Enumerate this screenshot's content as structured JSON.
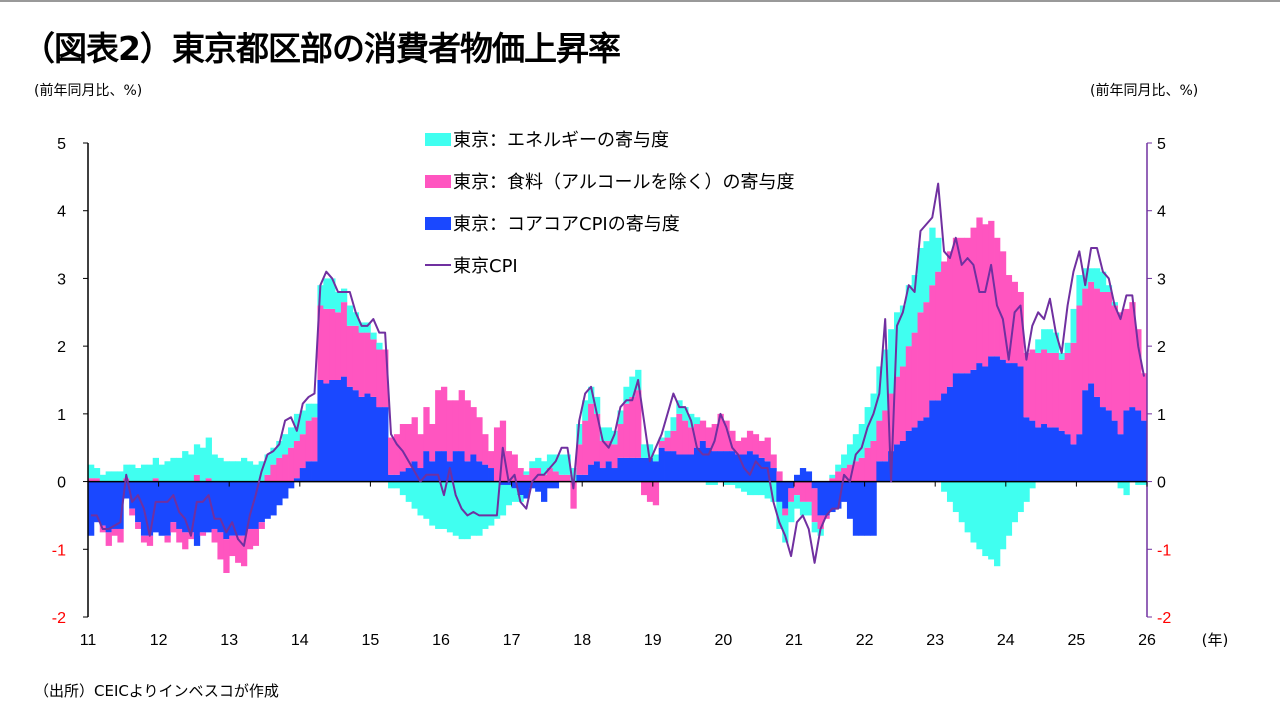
{
  "title": "（図表2）東京都区部の消費者物価上昇率",
  "unit_left": "(前年同月比、%)",
  "unit_right": "(前年同月比、%)",
  "footer": "（出所）CEICよりインベスコが作成",
  "colors": {
    "energy": "#40FFF0",
    "food": "#FF55C0",
    "core": "#1A48FF",
    "cpi": "#7030A0",
    "negative_tick": "#FF0000"
  },
  "chart_data": {
    "type": "bar+line",
    "stacked": true,
    "frequency": "monthly",
    "start": "2011-01",
    "xlabel_unit": "(年)",
    "x_ticks": [
      "11",
      "12",
      "13",
      "14",
      "15",
      "16",
      "17",
      "18",
      "19",
      "20",
      "21",
      "22",
      "23",
      "24",
      "25",
      "26"
    ],
    "y_ticks": [
      "5",
      "4",
      "3",
      "2",
      "1",
      "0",
      "-1",
      "-2"
    ],
    "ylim": [
      -2,
      5
    ],
    "y2lim": [
      -2,
      5
    ],
    "grid": false,
    "legend_position": "top-center",
    "series": [
      {
        "name": "東京：エネルギーの寄与度",
        "kind": "bar",
        "values": [
          0.2,
          0.15,
          0.1,
          0.15,
          0.15,
          0.15,
          0.2,
          0.25,
          0.2,
          0.25,
          0.25,
          0.3,
          0.25,
          0.3,
          0.35,
          0.35,
          0.45,
          0.4,
          0.45,
          0.5,
          0.6,
          0.4,
          0.35,
          0.3,
          0.3,
          0.3,
          0.35,
          0.3,
          0.25,
          0.3,
          0.3,
          0.25,
          0.25,
          0.3,
          0.3,
          0.4,
          0.35,
          0.25,
          0.2,
          0.3,
          0.45,
          0.45,
          0.3,
          0.2,
          0.3,
          0.2,
          0.15,
          0.15,
          0.1,
          0.1,
          0.0,
          -0.1,
          -0.1,
          -0.2,
          -0.3,
          -0.4,
          -0.5,
          -0.55,
          -0.65,
          -0.7,
          -0.7,
          -0.75,
          -0.8,
          -0.85,
          -0.85,
          -0.8,
          -0.8,
          -0.7,
          -0.65,
          -0.55,
          -0.45,
          -0.3,
          -0.2,
          -0.1,
          0.05,
          0.1,
          0.15,
          0.2,
          0.2,
          0.25,
          0.3,
          0.3,
          0.2,
          0.3,
          0.3,
          0.25,
          0.25,
          0.2,
          0.2,
          0.2,
          0.2,
          0.25,
          0.3,
          0.3,
          0.2,
          0.2,
          0.1,
          0.05,
          0.1,
          0.2,
          0.2,
          0.2,
          0.2,
          0.1,
          0.0,
          -0.05,
          -0.05,
          0.0,
          -0.05,
          -0.05,
          -0.1,
          -0.15,
          -0.2,
          -0.2,
          -0.2,
          -0.25,
          -0.3,
          -0.4,
          -0.4,
          -0.3,
          -0.2,
          -0.2,
          -0.2,
          -0.15,
          -0.1,
          0.0,
          0.05,
          0.1,
          0.2,
          0.3,
          0.4,
          0.5,
          0.6,
          0.7,
          0.8,
          0.9,
          0.95,
          0.95,
          0.9,
          0.9,
          0.85,
          0.95,
          0.9,
          0.85,
          0.5,
          -0.15,
          -0.3,
          -0.45,
          -0.6,
          -0.75,
          -0.9,
          -1.0,
          -1.1,
          -1.15,
          -1.25,
          -1.0,
          -0.8,
          -0.6,
          -0.45,
          -0.3,
          -0.1,
          0.2,
          0.3,
          0.35,
          0.3,
          0.1,
          0.15,
          0.5,
          0.45,
          0.3,
          0.2,
          0.3,
          0.3,
          0.1,
          0.05,
          -0.1,
          -0.2,
          0.0,
          -0.05,
          -0.05
        ]
      },
      {
        "name": "東京：食料（アルコールを除く）の寄与度",
        "kind": "bar",
        "values": [
          0.05,
          0.05,
          -0.1,
          -0.2,
          -0.1,
          -0.2,
          0.05,
          -0.1,
          -0.1,
          -0.1,
          -0.15,
          0.05,
          0.0,
          -0.1,
          -0.15,
          -0.2,
          -0.25,
          -0.1,
          0.1,
          -0.05,
          0.05,
          -0.2,
          -0.4,
          -0.5,
          -0.3,
          -0.4,
          -0.45,
          -0.3,
          -0.25,
          -0.1,
          0.1,
          0.25,
          0.35,
          0.4,
          0.5,
          0.55,
          0.5,
          0.6,
          0.65,
          1.1,
          1.1,
          1.05,
          1.0,
          1.1,
          0.9,
          0.95,
          0.95,
          0.9,
          0.85,
          0.85,
          0.85,
          0.55,
          0.6,
          0.7,
          0.65,
          0.65,
          0.5,
          0.65,
          0.55,
          0.9,
          0.95,
          0.9,
          0.75,
          0.9,
          0.9,
          0.7,
          0.65,
          0.45,
          0.25,
          0.8,
          0.9,
          0.45,
          0.4,
          0.2,
          0.1,
          0.2,
          0.2,
          0.1,
          0.2,
          0.15,
          0.1,
          0.1,
          -0.4,
          0.45,
          0.8,
          0.9,
          0.7,
          0.4,
          0.3,
          0.35,
          0.5,
          0.8,
          0.9,
          1.0,
          -0.2,
          -0.3,
          -0.35,
          0.1,
          0.2,
          0.3,
          0.6,
          0.5,
          0.4,
          0.35,
          0.3,
          0.3,
          0.4,
          0.55,
          0.45,
          0.3,
          0.2,
          0.25,
          0.3,
          0.3,
          0.25,
          0.35,
          0.2,
          0.15,
          -0.1,
          -0.2,
          -0.2,
          -0.3,
          -0.3,
          -0.5,
          -0.2,
          -0.05,
          0.05,
          0.15,
          0.2,
          0.25,
          0.3,
          0.35,
          0.5,
          0.6,
          0.6,
          0.75,
          0.85,
          1.0,
          1.1,
          1.25,
          1.4,
          1.6,
          1.7,
          1.7,
          1.9,
          1.95,
          2.0,
          2.0,
          2.0,
          2.0,
          2.1,
          2.15,
          2.1,
          2.0,
          1.75,
          1.6,
          1.3,
          1.2,
          1.1,
          0.95,
          1.05,
          1.1,
          1.1,
          1.1,
          1.1,
          1.05,
          1.2,
          1.5,
          1.9,
          1.5,
          1.5,
          1.6,
          1.7,
          1.75,
          1.7,
          1.8,
          1.5,
          1.55,
          1.2,
          0.7
        ]
      },
      {
        "name": "東京：コアコアCPIの寄与度",
        "kind": "bar",
        "values": [
          -0.8,
          -0.6,
          -0.65,
          -0.75,
          -0.7,
          -0.7,
          -0.25,
          -0.4,
          -0.6,
          -0.8,
          -0.8,
          -0.75,
          -0.8,
          -0.8,
          -0.6,
          -0.7,
          -0.75,
          -0.75,
          -0.95,
          -0.75,
          -0.75,
          -0.7,
          -0.75,
          -0.85,
          -0.8,
          -0.8,
          -0.8,
          -0.7,
          -0.7,
          -0.6,
          -0.55,
          -0.5,
          -0.35,
          -0.25,
          -0.1,
          0.05,
          0.2,
          0.3,
          0.3,
          1.5,
          1.45,
          1.5,
          1.5,
          1.55,
          1.4,
          1.35,
          1.25,
          1.3,
          1.25,
          1.1,
          1.1,
          0.1,
          0.1,
          0.15,
          0.2,
          0.3,
          0.2,
          0.45,
          0.3,
          0.45,
          0.45,
          0.3,
          0.45,
          0.45,
          0.3,
          0.4,
          0.3,
          0.25,
          0.2,
          0.0,
          -0.05,
          -0.05,
          -0.1,
          -0.2,
          -0.25,
          -0.1,
          -0.15,
          -0.3,
          -0.1,
          -0.1,
          0.0,
          0.0,
          0.0,
          0.1,
          0.1,
          0.25,
          0.3,
          0.2,
          0.3,
          0.2,
          0.35,
          0.35,
          0.35,
          0.35,
          0.35,
          0.35,
          0.3,
          0.5,
          0.45,
          0.45,
          0.4,
          0.4,
          0.4,
          0.5,
          0.6,
          0.5,
          0.45,
          0.45,
          0.45,
          0.45,
          0.4,
          0.4,
          0.45,
          0.4,
          0.35,
          0.3,
          0.2,
          -0.3,
          -0.4,
          -0.1,
          0.1,
          0.2,
          0.15,
          -0.1,
          -0.5,
          -0.5,
          -0.45,
          -0.4,
          -0.3,
          -0.55,
          -0.8,
          -0.8,
          -0.8,
          -0.8,
          0.3,
          0.3,
          0.45,
          0.55,
          0.6,
          0.75,
          0.8,
          0.9,
          0.95,
          1.2,
          1.2,
          1.3,
          1.4,
          1.6,
          1.6,
          1.6,
          1.65,
          1.75,
          1.7,
          1.85,
          1.85,
          1.8,
          1.75,
          1.75,
          1.7,
          0.95,
          0.9,
          0.8,
          0.85,
          0.8,
          0.8,
          0.75,
          0.7,
          0.55,
          0.7,
          1.35,
          1.45,
          1.25,
          1.1,
          1.05,
          0.9,
          0.7,
          1.05,
          1.1,
          1.05,
          0.9
        ]
      },
      {
        "name": "東京CPI",
        "kind": "line",
        "axis": "right",
        "values": [
          -0.5,
          -0.5,
          -0.7,
          -0.7,
          -0.65,
          -0.6,
          0.1,
          -0.3,
          -0.2,
          -0.4,
          -0.8,
          -0.3,
          -0.3,
          -0.3,
          -0.2,
          -0.45,
          -0.55,
          -0.8,
          -0.3,
          -0.3,
          -0.2,
          -0.55,
          -0.55,
          -0.75,
          -0.6,
          -0.85,
          -0.95,
          -0.5,
          -0.2,
          0.15,
          0.4,
          0.45,
          0.55,
          0.9,
          0.95,
          0.75,
          1.15,
          1.25,
          1.3,
          2.9,
          3.1,
          3.0,
          2.8,
          2.8,
          2.8,
          2.5,
          2.3,
          2.3,
          2.4,
          2.2,
          2.2,
          0.7,
          0.55,
          0.45,
          0.3,
          0.15,
          0.0,
          0.1,
          0.1,
          0.1,
          -0.2,
          0.2,
          -0.2,
          -0.4,
          -0.5,
          -0.45,
          -0.5,
          -0.5,
          -0.5,
          -0.5,
          0.5,
          0.0,
          0.1,
          -0.3,
          -0.4,
          0.0,
          0.1,
          0.1,
          0.2,
          0.3,
          0.5,
          0.5,
          -0.1,
          0.9,
          1.3,
          1.4,
          1.0,
          0.6,
          0.5,
          0.7,
          1.1,
          1.2,
          1.2,
          1.5,
          0.9,
          0.3,
          0.5,
          0.7,
          1.0,
          1.3,
          1.1,
          1.1,
          0.9,
          0.5,
          0.4,
          0.4,
          0.6,
          1.0,
          0.8,
          0.5,
          0.4,
          0.2,
          0.1,
          0.3,
          0.2,
          0.2,
          -0.3,
          -0.6,
          -0.8,
          -1.1,
          -0.6,
          -0.5,
          -0.7,
          -1.2,
          -0.7,
          -0.5,
          -0.4,
          -0.4,
          0.1,
          0.0,
          0.4,
          0.5,
          0.8,
          1.0,
          1.3,
          2.4,
          0.0,
          2.3,
          2.5,
          2.9,
          2.8,
          3.7,
          3.8,
          3.9,
          4.4,
          3.4,
          3.3,
          3.6,
          3.2,
          3.3,
          3.2,
          2.8,
          2.8,
          3.2,
          2.6,
          2.4,
          1.8,
          2.5,
          2.6,
          1.8,
          2.3,
          2.5,
          2.4,
          2.7,
          2.2,
          1.9,
          2.6,
          3.1,
          3.4,
          2.9,
          3.45,
          3.45,
          3.1,
          3.0,
          2.6,
          2.4,
          2.75,
          2.75,
          2.0,
          1.55
        ]
      }
    ]
  }
}
